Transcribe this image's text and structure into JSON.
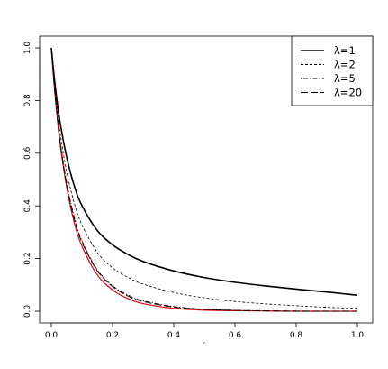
{
  "chart_data": {
    "type": "line",
    "title": "",
    "xlabel": "r",
    "ylabel": "",
    "xlim": [
      0,
      1
    ],
    "ylim": [
      0,
      1
    ],
    "x_ticks": [
      "0.0",
      "0.2",
      "0.4",
      "0.6",
      "0.8",
      "1.0"
    ],
    "y_ticks": [
      "0.0",
      "0.2",
      "0.4",
      "0.6",
      "0.8",
      "1.0"
    ],
    "grid": false,
    "legend": {
      "position": "top-right",
      "entries": [
        {
          "label": "λ=1",
          "dash": "solid"
        },
        {
          "label": "λ=2",
          "dash": "dashed"
        },
        {
          "label": "λ=5",
          "dash": "dotdash"
        },
        {
          "label": "λ=20",
          "dash": "longdash"
        }
      ]
    },
    "x": [
      0,
      0.01,
      0.02,
      0.03,
      0.05,
      0.075,
      0.1,
      0.15,
      0.2,
      0.25,
      0.3,
      0.4,
      0.5,
      0.6,
      0.7,
      0.8,
      0.9,
      1.0
    ],
    "series": [
      {
        "name": "λ=1",
        "dash": "solid",
        "color": "#000000",
        "width": 1.6,
        "values": [
          1.0,
          0.883,
          0.787,
          0.708,
          0.586,
          0.476,
          0.401,
          0.307,
          0.252,
          0.216,
          0.189,
          0.153,
          0.128,
          0.11,
          0.096,
          0.084,
          0.073,
          0.061
        ]
      },
      {
        "name": "λ=2",
        "dash": "dashed",
        "color": "#000000",
        "width": 0.8,
        "values": [
          1.0,
          0.866,
          0.757,
          0.667,
          0.53,
          0.41,
          0.328,
          0.224,
          0.165,
          0.129,
          0.103,
          0.071,
          0.051,
          0.037,
          0.028,
          0.021,
          0.015,
          0.011
        ]
      },
      {
        "name": "λ=5",
        "dash": "dotdash",
        "color": "#000000",
        "width": 0.8,
        "values": [
          1.0,
          0.855,
          0.736,
          0.638,
          0.49,
          0.358,
          0.268,
          0.158,
          0.097,
          0.062,
          0.04,
          0.018,
          0.008,
          0.004,
          0.002,
          0.001,
          0.0,
          0.0
        ]
      },
      {
        "name": "λ=20",
        "dash": "longdash",
        "color": "#000000",
        "width": 1.0,
        "values": [
          1.0,
          0.852,
          0.731,
          0.632,
          0.482,
          0.35,
          0.262,
          0.154,
          0.094,
          0.058,
          0.037,
          0.016,
          0.007,
          0.003,
          0.001,
          0.0,
          0.0,
          0.0
        ]
      },
      {
        "name": "",
        "dash": "solid",
        "color": "#e8000b",
        "width": 1.2,
        "values": [
          1.0,
          0.849,
          0.726,
          0.624,
          0.472,
          0.336,
          0.247,
          0.138,
          0.081,
          0.048,
          0.029,
          0.011,
          0.004,
          0.002,
          0.001,
          0.0,
          0.0,
          0.0
        ]
      }
    ]
  }
}
